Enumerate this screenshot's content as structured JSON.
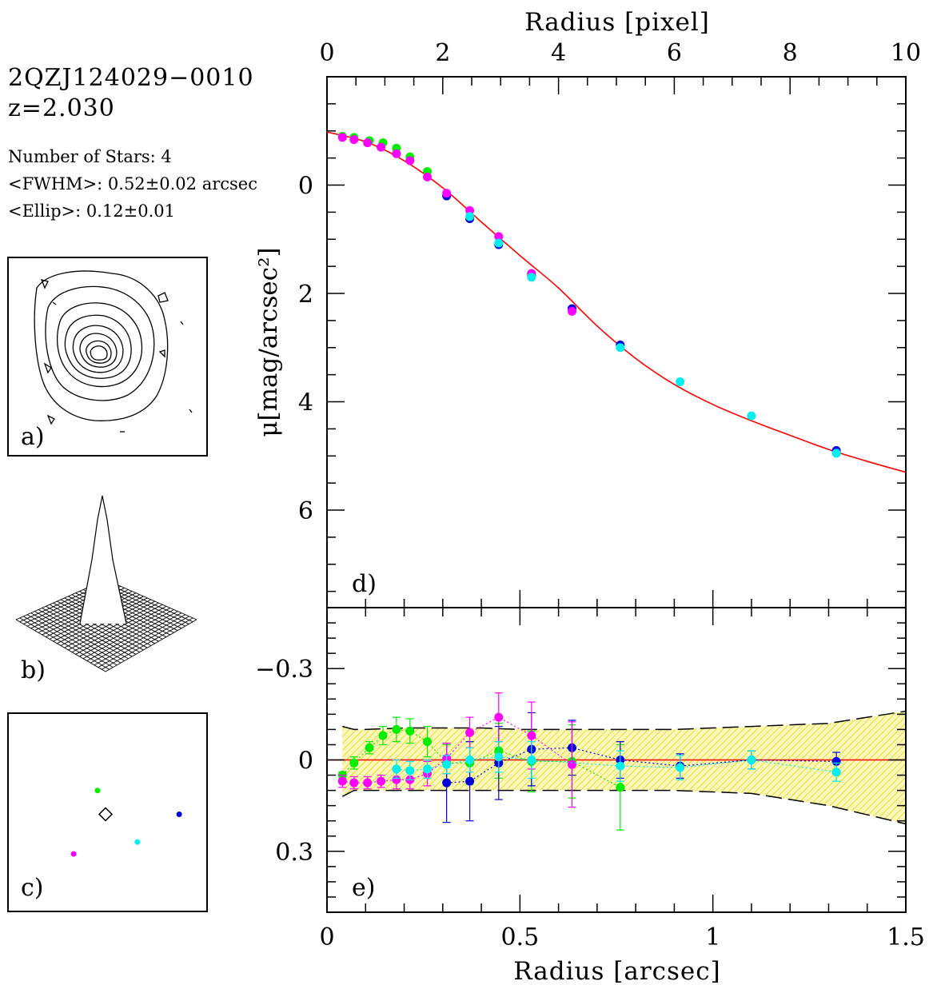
{
  "object": {
    "name": "2QZJ124029−0010",
    "redshift": "z=2.030"
  },
  "stats": {
    "nstars": "Number of Stars: 4",
    "fwhm": "<FWHM>: 0.52±0.02 arcsec",
    "ellip": "<Ellip>: 0.12±0.01"
  },
  "panels": {
    "a": "a)",
    "b": "b)",
    "c": "c)",
    "d": "d)",
    "e": "e)"
  },
  "colors": {
    "green": "#00ee00",
    "blue": "#0000dd",
    "magenta": "#ff00ff",
    "cyan": "#00eeee",
    "model": "#ff0000",
    "band": "#f5f08a"
  },
  "chart_data": [
    {
      "type": "scatter",
      "panel": "d",
      "top_axis": {
        "label": "Radius [pixel]",
        "range": [
          0,
          10
        ],
        "ticks": [
          "0",
          "2",
          "4",
          "6",
          "8",
          "10"
        ]
      },
      "ylabel": "μ[mag/arcsec²]",
      "yticks": [
        "0",
        "2",
        "4",
        "6"
      ],
      "xlim": [
        0,
        1.5
      ],
      "ylim": [
        -2.0,
        7.8
      ],
      "y_inverted": true,
      "model_curve": {
        "x": [
          0,
          0.1,
          0.2,
          0.3,
          0.4,
          0.5,
          0.6,
          0.7,
          0.8,
          0.9,
          1.0,
          1.1,
          1.2,
          1.3,
          1.4,
          1.5
        ],
        "y": [
          -0.98,
          -0.8,
          -0.45,
          0.05,
          0.68,
          1.3,
          1.9,
          2.6,
          3.2,
          3.68,
          4.05,
          4.35,
          4.62,
          4.88,
          5.1,
          5.3
        ]
      },
      "series": [
        {
          "color": "green",
          "x": [
            0.04,
            0.07,
            0.11,
            0.145,
            0.18,
            0.215,
            0.26
          ],
          "y": [
            -0.9,
            -0.88,
            -0.82,
            -0.78,
            -0.68,
            -0.52,
            -0.25
          ]
        },
        {
          "color": "blue",
          "x": [
            0.31,
            0.37,
            0.445,
            0.53,
            0.635,
            0.76,
            1.32
          ],
          "y": [
            0.2,
            0.62,
            1.1,
            1.67,
            2.28,
            2.95,
            4.9
          ]
        },
        {
          "color": "magenta",
          "x": [
            0.04,
            0.07,
            0.105,
            0.14,
            0.18,
            0.215,
            0.26,
            0.31,
            0.37,
            0.445,
            0.53,
            0.635
          ],
          "y": [
            -0.88,
            -0.84,
            -0.78,
            -0.7,
            -0.58,
            -0.45,
            -0.15,
            0.15,
            0.47,
            0.95,
            1.63,
            2.33
          ]
        },
        {
          "color": "cyan",
          "x": [
            0.37,
            0.445,
            0.53,
            0.76,
            0.915,
            1.1,
            1.32
          ],
          "y": [
            0.58,
            1.07,
            1.7,
            3.0,
            3.63,
            4.26,
            4.95
          ]
        }
      ]
    },
    {
      "type": "scatter",
      "panel": "e",
      "xlabel": "Radius [arcsec]",
      "xticks": [
        "0",
        "0.5",
        "1",
        "1.5"
      ],
      "yticks": [
        "−0.3",
        "0",
        "0.3"
      ],
      "xlim": [
        0,
        1.5
      ],
      "ylim": [
        -0.5,
        0.5
      ],
      "y_inverted": true,
      "reference_line": 0,
      "band": {
        "x": [
          0.04,
          0.07,
          0.1,
          0.2,
          0.3,
          0.4,
          0.5,
          0.6,
          0.7,
          0.8,
          0.9,
          1.0,
          1.1,
          1.2,
          1.3,
          1.4,
          1.5
        ],
        "lower": [
          -0.11,
          -0.1,
          -0.1,
          -0.105,
          -0.105,
          -0.105,
          -0.1,
          -0.1,
          -0.1,
          -0.1,
          -0.1,
          -0.105,
          -0.11,
          -0.115,
          -0.12,
          -0.14,
          -0.16
        ],
        "upper": [
          0.12,
          0.1,
          0.1,
          0.1,
          0.1,
          0.1,
          0.1,
          0.1,
          0.1,
          0.1,
          0.1,
          0.105,
          0.11,
          0.13,
          0.15,
          0.18,
          0.21
        ]
      },
      "series": [
        {
          "color": "green",
          "x": [
            0.04,
            0.07,
            0.11,
            0.145,
            0.18,
            0.215,
            0.26,
            0.31,
            0.37,
            0.445,
            0.53,
            0.635,
            0.76
          ],
          "y": [
            0.05,
            0.01,
            -0.04,
            -0.08,
            -0.1,
            -0.095,
            -0.06,
            0.01,
            0.01,
            -0.03,
            0.005,
            0.005,
            0.09
          ],
          "err": [
            0.01,
            0.02,
            0.02,
            0.03,
            0.04,
            0.04,
            0.05,
            0.06,
            0.07,
            0.09,
            0.1,
            0.12,
            0.14
          ]
        },
        {
          "color": "blue",
          "x": [
            0.31,
            0.37,
            0.445,
            0.53,
            0.635,
            0.76,
            0.915,
            1.1,
            1.32
          ],
          "y": [
            0.075,
            0.07,
            0.01,
            -0.035,
            -0.04,
            0.0,
            0.02,
            0.0,
            0.005
          ],
          "err": [
            0.13,
            0.13,
            0.12,
            0.12,
            0.09,
            0.06,
            0.04,
            0.03,
            0.03
          ]
        },
        {
          "color": "magenta",
          "x": [
            0.04,
            0.07,
            0.105,
            0.14,
            0.18,
            0.215,
            0.26,
            0.31,
            0.37,
            0.445,
            0.53,
            0.635
          ],
          "y": [
            0.07,
            0.075,
            0.075,
            0.07,
            0.065,
            0.065,
            0.045,
            -0.005,
            -0.09,
            -0.14,
            -0.08,
            0.015
          ],
          "err": [
            0.02,
            0.02,
            0.02,
            0.02,
            0.03,
            0.03,
            0.04,
            0.05,
            0.05,
            0.08,
            0.11,
            0.14
          ]
        },
        {
          "color": "cyan",
          "x": [
            0.18,
            0.215,
            0.26,
            0.31,
            0.37,
            0.445,
            0.53,
            0.76,
            0.915,
            1.1,
            1.32
          ],
          "y": [
            0.03,
            0.035,
            0.03,
            0.015,
            0.0,
            -0.01,
            0.0,
            0.02,
            0.025,
            0.0,
            0.04
          ],
          "err": [
            0.03,
            0.03,
            0.03,
            0.03,
            0.04,
            0.05,
            0.06,
            0.05,
            0.04,
            0.03,
            0.03
          ]
        }
      ]
    },
    {
      "type": "scatter",
      "panel": "c",
      "xlim": [
        0,
        10
      ],
      "ylim": [
        0,
        10
      ],
      "series": [
        {
          "color": "green",
          "x": [
            4.5
          ],
          "y": [
            6.1
          ]
        },
        {
          "color": "blue",
          "x": [
            8.6
          ],
          "y": [
            4.9
          ]
        },
        {
          "color": "cyan",
          "x": [
            6.5
          ],
          "y": [
            3.5
          ]
        },
        {
          "color": "magenta",
          "x": [
            3.3
          ],
          "y": [
            2.9
          ]
        }
      ],
      "marker": {
        "shape": "diamond",
        "x": [
          4.9
        ],
        "y": [
          4.9
        ]
      }
    }
  ]
}
